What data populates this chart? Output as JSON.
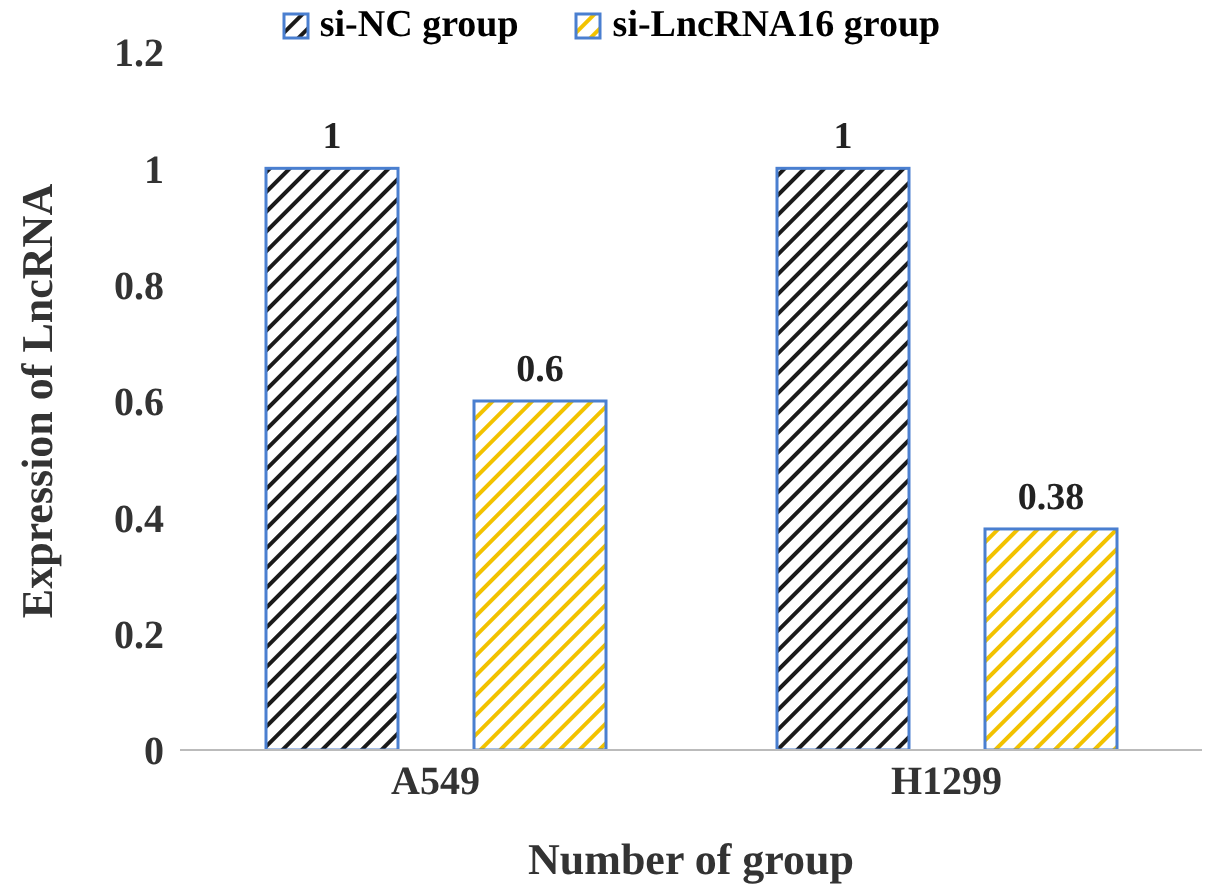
{
  "chart_data": {
    "type": "bar",
    "xlabel": "Number of group",
    "ylabel": "Expression of  LncRNA",
    "categories": [
      "A549",
      "H1299"
    ],
    "series": [
      {
        "name": "si-NC group",
        "color": "#1a1a1a",
        "values": [
          1,
          1
        ]
      },
      {
        "name": "si-LncRNA16 group",
        "color": "#f2c200",
        "values": [
          0.6,
          0.38
        ]
      }
    ],
    "ylim": [
      0,
      1.2
    ],
    "yticks": [
      0,
      0.2,
      0.4,
      0.6,
      0.8,
      1,
      1.2
    ],
    "grid": false,
    "legend": "top",
    "data_labels": true
  }
}
